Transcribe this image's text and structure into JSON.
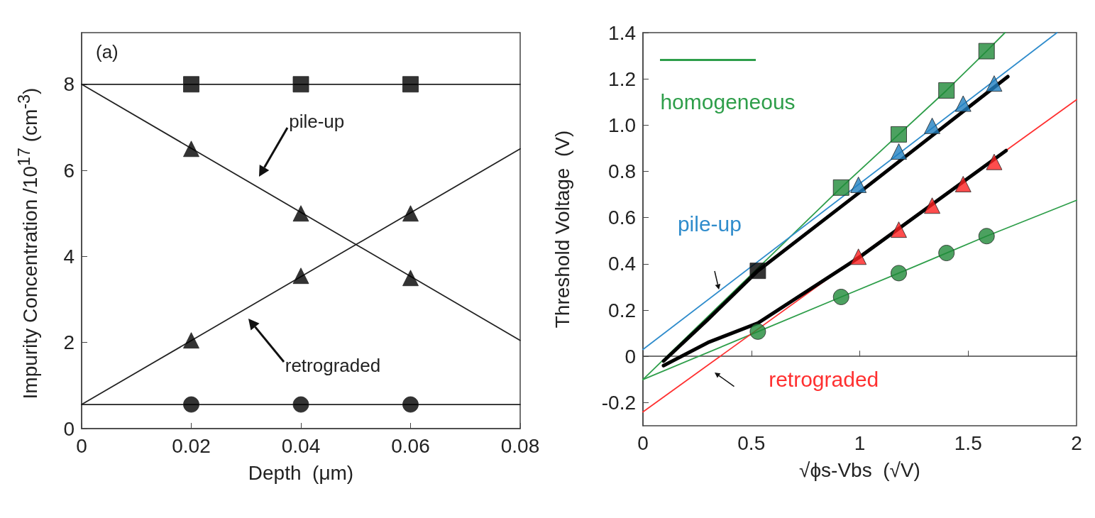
{
  "chart_data": [
    {
      "type": "line",
      "xlabel": "Depth  (μm)",
      "ylabel": "Impurity Concentration /10$^{17}$ (cm$^{-3}$)",
      "xlim": [
        0,
        0.08
      ],
      "xticks": [
        0,
        0.02,
        0.04,
        0.06,
        0.08
      ],
      "ylim": [
        0,
        9.2
      ],
      "yticks": [
        0,
        2,
        4,
        6,
        8
      ],
      "annotations": [
        "(a)",
        "pile-up",
        "retrograded"
      ],
      "series": [
        {
          "type": "line",
          "color": "#222222",
          "marker": "none",
          "x": [
            0,
            0.08
          ],
          "values": [
            8,
            8
          ]
        },
        {
          "type": "scatter",
          "color": "#000000",
          "marker": "square",
          "x": [
            0.02,
            0.04,
            0.06
          ],
          "values": [
            8,
            8,
            8
          ]
        },
        {
          "type": "line",
          "color": "#222222",
          "marker": "none",
          "x": [
            0,
            0.08
          ],
          "values": [
            8,
            2.05
          ]
        },
        {
          "type": "scatter",
          "color": "#000000",
          "marker": "triangle",
          "x": [
            0.02,
            0.04,
            0.06
          ],
          "values": [
            6.5,
            5.0,
            3.5
          ]
        },
        {
          "type": "line",
          "color": "#222222",
          "marker": "none",
          "x": [
            0,
            0.08
          ],
          "values": [
            0.56,
            6.5
          ]
        },
        {
          "type": "scatter",
          "color": "#000000",
          "marker": "triangle",
          "x": [
            0.02,
            0.04,
            0.06
          ],
          "values": [
            2.05,
            3.55,
            5.0
          ]
        },
        {
          "type": "line",
          "color": "#222222",
          "marker": "none",
          "x": [
            0,
            0.08
          ],
          "values": [
            0.56,
            0.56
          ]
        },
        {
          "type": "scatter",
          "color": "#000000",
          "marker": "circle",
          "x": [
            0.02,
            0.04,
            0.06
          ],
          "values": [
            0.56,
            0.56,
            0.56
          ]
        }
      ]
    },
    {
      "type": "line",
      "xlabel": "√ϕs-Vbs  (√V)",
      "ylabel": "Threshold Voltage  (V)",
      "xlim": [
        0,
        2
      ],
      "xticks": [
        0,
        0.5,
        1,
        1.5,
        2
      ],
      "ylim": [
        -0.3,
        1.4
      ],
      "yticks": [
        -0.2,
        0,
        0.2,
        0.4,
        0.6,
        0.8,
        {
          "value": 1,
          "label": "1.0"
        },
        1.2,
        1.4
      ],
      "series": [
        {
          "type": "line",
          "name": "homogeneous",
          "color": "#2e9e4a",
          "marker": "none",
          "x": [
            0,
            0.914,
            1.18,
            1.4,
            1.585,
            1.67
          ],
          "values": [
            -0.1,
            0.73,
            0.96,
            1.15,
            1.32,
            1.4
          ]
        },
        {
          "type": "line",
          "color": "#2e9e4a",
          "marker": "none",
          "x": [
            0,
            0.53,
            0.914,
            1.18,
            1.4,
            1.585,
            2
          ],
          "values": [
            -0.1,
            0.107,
            0.257,
            0.36,
            0.447,
            0.52,
            0.675
          ]
        },
        {
          "type": "line",
          "name": "pile-up",
          "color": "#2f8ccc",
          "marker": "none",
          "x": [
            0,
            1.91
          ],
          "values": [
            0.03,
            1.4
          ]
        },
        {
          "type": "line",
          "name": "retrograded",
          "color": "#ff3030",
          "marker": "none",
          "x": [
            0,
            2
          ],
          "values": [
            -0.24,
            1.11
          ]
        },
        {
          "type": "line",
          "color": "#000000",
          "marker": "none",
          "x": [
            0.095,
            0.3,
            0.53,
            1.0,
            1.683
          ],
          "values": [
            -0.02,
            0.16,
            0.37,
            0.71,
            1.21
          ]
        },
        {
          "type": "line",
          "color": "#000000",
          "marker": "none",
          "x": [
            0.095,
            0.3,
            0.53,
            1.0,
            1.675
          ],
          "values": [
            -0.04,
            0.06,
            0.144,
            0.43,
            0.89
          ]
        },
        {
          "type": "scatter",
          "color": "#1f8a38",
          "marker": "square",
          "x": [
            0.914,
            1.18,
            1.4,
            1.585
          ],
          "values": [
            0.73,
            0.96,
            1.15,
            1.32
          ]
        },
        {
          "type": "scatter",
          "color": "#1f8a38",
          "marker": "circle",
          "x": [
            0.53,
            0.914,
            1.18,
            1.4,
            1.585
          ],
          "values": [
            0.107,
            0.257,
            0.36,
            0.447,
            0.52
          ]
        },
        {
          "type": "scatter",
          "color": "#000000",
          "marker": "square",
          "x": [
            0.53
          ],
          "values": [
            0.37
          ]
        },
        {
          "type": "scatter",
          "color": "#2080c0",
          "marker": "triangle",
          "x": [
            0.994,
            1.18,
            1.334,
            1.477,
            1.62
          ],
          "values": [
            0.742,
            0.886,
            0.997,
            1.093,
            1.18
          ]
        },
        {
          "type": "scatter",
          "color": "#ff2020",
          "marker": "triangle",
          "x": [
            0.994,
            1.18,
            1.334,
            1.477,
            1.62
          ],
          "values": [
            0.431,
            0.548,
            0.652,
            0.745,
            0.841
          ]
        }
      ]
    }
  ]
}
